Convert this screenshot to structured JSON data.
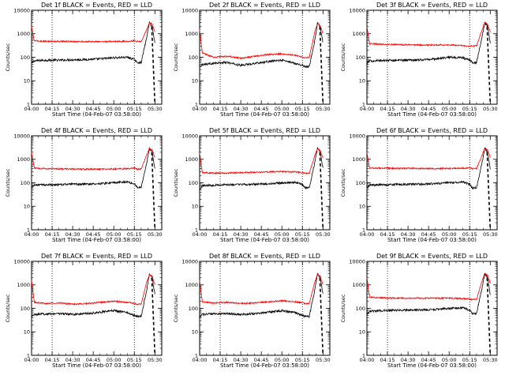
{
  "figure": {
    "x_axis_label": "Start Time (04-Feb-07 03:58:00)",
    "y_axis_label": "Counts/sec",
    "x_ticks": [
      "04:00",
      "04:15",
      "04:30",
      "04:45",
      "05:00",
      "05:15",
      "05:30"
    ],
    "y_ticks": [
      "1",
      "10",
      "100",
      "1000",
      "10000"
    ],
    "colors": {
      "events": "#000000",
      "lld": "#ff0000",
      "axes": "#000000"
    }
  },
  "chart_data": [
    {
      "type": "line",
      "title": "Det 1f BLACK = Events, RED = LLD",
      "xlabel": "Start Time (04-Feb-07 03:58:00)",
      "ylabel": "Counts/sec",
      "ylog": true,
      "ylim": [
        1,
        10000
      ],
      "xlim": [
        "04:00",
        "05:35"
      ],
      "x": [
        "04:00",
        "04:02",
        "04:10",
        "04:20",
        "04:30",
        "04:40",
        "04:50",
        "05:00",
        "05:10",
        "05:15",
        "05:17",
        "05:20",
        "05:24",
        "05:26",
        "05:28",
        "05:30"
      ],
      "series": [
        {
          "name": "Events",
          "color": "#000000",
          "values": [
            55,
            70,
            75,
            75,
            78,
            80,
            85,
            95,
            100,
            80,
            60,
            60,
            700,
            3000,
            2000,
            400
          ]
        },
        {
          "name": "LLD",
          "color": "#ff0000",
          "values": [
            2000,
            500,
            480,
            470,
            470,
            460,
            460,
            470,
            480,
            500,
            470,
            470,
            1500,
            3000,
            2500,
            1200
          ]
        }
      ],
      "vlines": [
        "04:15",
        "05:15"
      ]
    },
    {
      "type": "line",
      "title": "Det 2f BLACK = Events, RED = LLD",
      "xlabel": "Start Time (04-Feb-07 03:58:00)",
      "ylabel": "Counts/sec",
      "ylog": true,
      "ylim": [
        1,
        10000
      ],
      "xlim": [
        "04:00",
        "05:35"
      ],
      "x": [
        "04:00",
        "04:02",
        "04:10",
        "04:20",
        "04:30",
        "04:40",
        "04:50",
        "05:00",
        "05:10",
        "05:15",
        "05:17",
        "05:20",
        "05:24",
        "05:26",
        "05:28",
        "05:30"
      ],
      "series": [
        {
          "name": "Events",
          "color": "#000000",
          "values": [
            40,
            50,
            55,
            60,
            45,
            55,
            65,
            75,
            55,
            45,
            40,
            40,
            500,
            3000,
            2000,
            400
          ]
        },
        {
          "name": "LLD",
          "color": "#ff0000",
          "values": [
            1500,
            150,
            100,
            110,
            90,
            110,
            130,
            140,
            120,
            100,
            95,
            100,
            1200,
            2800,
            2200,
            1000
          ]
        }
      ],
      "vlines": [
        "04:15",
        "05:15"
      ]
    },
    {
      "type": "line",
      "title": "Det 3f BLACK = Events, RED = LLD",
      "xlabel": "Start Time (04-Feb-07 03:58:00)",
      "ylabel": "Counts/sec",
      "ylog": true,
      "ylim": [
        1,
        10000
      ],
      "xlim": [
        "04:00",
        "05:35"
      ],
      "x": [
        "04:00",
        "04:02",
        "04:10",
        "04:20",
        "04:30",
        "04:40",
        "04:50",
        "05:00",
        "05:10",
        "05:15",
        "05:17",
        "05:20",
        "05:24",
        "05:26",
        "05:28",
        "05:30"
      ],
      "series": [
        {
          "name": "Events",
          "color": "#000000",
          "values": [
            55,
            70,
            72,
            74,
            76,
            78,
            85,
            100,
            95,
            75,
            60,
            60,
            700,
            3000,
            2000,
            400
          ]
        },
        {
          "name": "LLD",
          "color": "#ff0000",
          "values": [
            2000,
            380,
            360,
            350,
            340,
            330,
            330,
            330,
            320,
            300,
            300,
            300,
            1500,
            3000,
            2500,
            1200
          ]
        }
      ],
      "vlines": [
        "04:15",
        "05:15"
      ]
    },
    {
      "type": "line",
      "title": "Det 4f BLACK = Events, RED = LLD",
      "xlabel": "Start Time (04-Feb-07 03:58:00)",
      "ylabel": "Counts/sec",
      "ylog": true,
      "ylim": [
        1,
        10000
      ],
      "xlim": [
        "04:00",
        "05:35"
      ],
      "x": [
        "04:00",
        "04:02",
        "04:10",
        "04:20",
        "04:30",
        "04:40",
        "04:50",
        "05:00",
        "05:10",
        "05:15",
        "05:17",
        "05:20",
        "05:24",
        "05:26",
        "05:28",
        "05:30"
      ],
      "series": [
        {
          "name": "Events",
          "color": "#000000",
          "values": [
            60,
            80,
            82,
            84,
            86,
            88,
            92,
            100,
            110,
            90,
            65,
            65,
            700,
            3000,
            2000,
            400
          ]
        },
        {
          "name": "LLD",
          "color": "#ff0000",
          "values": [
            2000,
            420,
            400,
            390,
            390,
            380,
            380,
            390,
            400,
            420,
            380,
            380,
            1500,
            3000,
            2500,
            1200
          ]
        }
      ],
      "vlines": [
        "04:15",
        "05:15"
      ]
    },
    {
      "type": "line",
      "title": "Det 5f BLACK = Events, RED = LLD",
      "xlabel": "Start Time (04-Feb-07 03:58:00)",
      "ylabel": "Counts/sec",
      "ylog": true,
      "ylim": [
        1,
        10000
      ],
      "xlim": [
        "04:00",
        "05:35"
      ],
      "x": [
        "04:00",
        "04:02",
        "04:10",
        "04:20",
        "04:30",
        "04:40",
        "04:50",
        "05:00",
        "05:10",
        "05:15",
        "05:17",
        "05:20",
        "05:24",
        "05:26",
        "05:28",
        "05:30"
      ],
      "series": [
        {
          "name": "Events",
          "color": "#000000",
          "values": [
            55,
            75,
            80,
            82,
            84,
            86,
            90,
            100,
            105,
            85,
            60,
            60,
            700,
            3000,
            2000,
            400
          ]
        },
        {
          "name": "LLD",
          "color": "#ff0000",
          "values": [
            1800,
            270,
            260,
            260,
            270,
            280,
            290,
            300,
            290,
            270,
            250,
            250,
            1400,
            2800,
            2300,
            1100
          ]
        }
      ],
      "vlines": [
        "04:15",
        "05:15"
      ]
    },
    {
      "type": "line",
      "title": "Det 6f BLACK = Events, RED = LLD",
      "xlabel": "Start Time (04-Feb-07 03:58:00)",
      "ylabel": "Counts/sec",
      "ylog": true,
      "ylim": [
        1,
        10000
      ],
      "xlim": [
        "04:00",
        "05:35"
      ],
      "x": [
        "04:00",
        "04:02",
        "04:10",
        "04:20",
        "04:30",
        "04:40",
        "04:50",
        "05:00",
        "05:10",
        "05:15",
        "05:17",
        "05:20",
        "05:24",
        "05:26",
        "05:28",
        "05:30"
      ],
      "series": [
        {
          "name": "Events",
          "color": "#000000",
          "values": [
            55,
            80,
            82,
            84,
            86,
            88,
            92,
            100,
            110,
            85,
            60,
            60,
            700,
            3000,
            2000,
            400
          ]
        },
        {
          "name": "LLD",
          "color": "#ff0000",
          "values": [
            2000,
            430,
            420,
            410,
            410,
            400,
            400,
            410,
            420,
            430,
            400,
            400,
            1500,
            3000,
            2500,
            1200
          ]
        }
      ],
      "vlines": [
        "04:15",
        "05:15"
      ]
    },
    {
      "type": "line",
      "title": "Det 7f BLACK = Events, RED = LLD",
      "xlabel": "Start Time (04-Feb-07 03:58:00)",
      "ylabel": "Counts/sec",
      "ylog": true,
      "ylim": [
        1,
        10000
      ],
      "xlim": [
        "04:00",
        "05:35"
      ],
      "x": [
        "04:00",
        "04:02",
        "04:10",
        "04:20",
        "04:30",
        "04:40",
        "04:50",
        "05:00",
        "05:10",
        "05:15",
        "05:17",
        "05:20",
        "05:24",
        "05:26",
        "05:28",
        "05:30"
      ],
      "series": [
        {
          "name": "Events",
          "color": "#000000",
          "values": [
            45,
            55,
            58,
            60,
            55,
            60,
            68,
            80,
            65,
            50,
            45,
            45,
            600,
            3000,
            2000,
            400
          ]
        },
        {
          "name": "LLD",
          "color": "#ff0000",
          "values": [
            1500,
            180,
            160,
            170,
            150,
            160,
            180,
            200,
            180,
            160,
            150,
            150,
            1300,
            2800,
            2300,
            1000
          ]
        }
      ],
      "vlines": [
        "04:15",
        "05:15"
      ]
    },
    {
      "type": "line",
      "title": "Det 8f BLACK = Events, RED = LLD",
      "xlabel": "Start Time (04-Feb-07 03:58:00)",
      "ylabel": "Counts/sec",
      "ylog": true,
      "ylim": [
        1,
        10000
      ],
      "xlim": [
        "04:00",
        "05:35"
      ],
      "x": [
        "04:00",
        "04:02",
        "04:10",
        "04:20",
        "04:30",
        "04:40",
        "04:50",
        "05:00",
        "05:10",
        "05:15",
        "05:17",
        "05:20",
        "05:24",
        "05:26",
        "05:28",
        "05:30"
      ],
      "series": [
        {
          "name": "Events",
          "color": "#000000",
          "values": [
            45,
            55,
            58,
            60,
            55,
            60,
            68,
            80,
            65,
            50,
            45,
            45,
            600,
            3000,
            2000,
            400
          ]
        },
        {
          "name": "LLD",
          "color": "#ff0000",
          "values": [
            1500,
            190,
            170,
            180,
            160,
            170,
            190,
            210,
            190,
            170,
            160,
            160,
            1300,
            2800,
            2300,
            1000
          ]
        }
      ],
      "vlines": [
        "04:15",
        "05:15"
      ]
    },
    {
      "type": "line",
      "title": "Det 9f BLACK = Events, RED = LLD",
      "xlabel": "Start Time (04-Feb-07 03:58:00)",
      "ylabel": "Counts/sec",
      "ylog": true,
      "ylim": [
        1,
        10000
      ],
      "xlim": [
        "04:00",
        "05:35"
      ],
      "x": [
        "04:00",
        "04:02",
        "04:10",
        "04:20",
        "04:30",
        "04:40",
        "04:50",
        "05:00",
        "05:10",
        "05:15",
        "05:17",
        "05:20",
        "05:24",
        "05:26",
        "05:28",
        "05:30"
      ],
      "series": [
        {
          "name": "Events",
          "color": "#000000",
          "values": [
            55,
            75,
            80,
            82,
            84,
            86,
            90,
            100,
            105,
            85,
            60,
            60,
            700,
            3000,
            2000,
            400
          ]
        },
        {
          "name": "LLD",
          "color": "#ff0000",
          "values": [
            2000,
            300,
            280,
            270,
            270,
            270,
            270,
            270,
            260,
            250,
            240,
            240,
            1500,
            3000,
            2500,
            1200
          ]
        }
      ],
      "vlines": [
        "04:15",
        "05:15"
      ]
    }
  ]
}
